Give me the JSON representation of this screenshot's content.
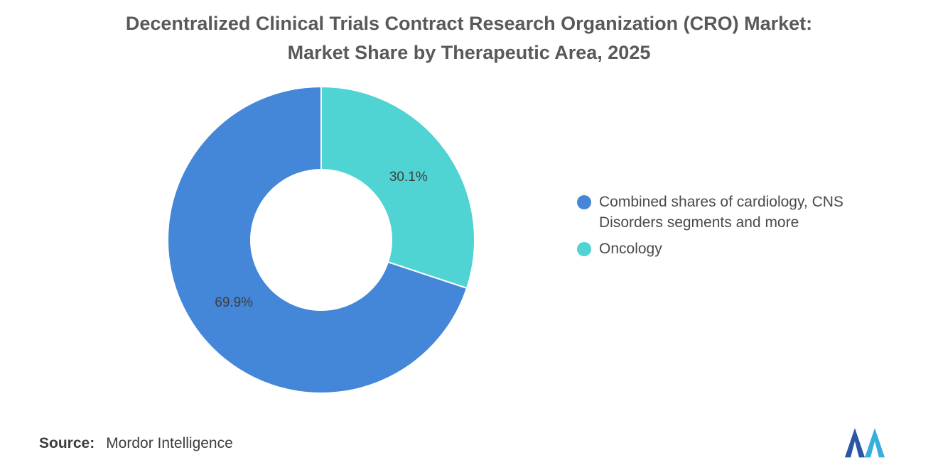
{
  "title": {
    "line1": "Decentralized Clinical Trials Contract Research Organization (CRO) Market:",
    "line2": "Market Share by Therapeutic Area, 2025"
  },
  "chart_data": {
    "type": "pie",
    "subtype": "donut",
    "title": "Decentralized Clinical Trials Contract Research Organization (CRO) Market: Market Share by Therapeutic Area, 2025",
    "slices": [
      {
        "label": "Combined shares of cardiology, CNS Disorders segments and more",
        "value": 69.9,
        "data_label": "69.9%",
        "color": "#4486D8"
      },
      {
        "label": "Oncology",
        "value": 30.1,
        "data_label": "30.1%",
        "color": "#4FD3D3"
      }
    ],
    "draw_order": [
      1,
      0
    ],
    "start_angle_deg": 0,
    "direction": "clockwise",
    "inner_radius_ratio": 0.46,
    "legend_position": "right",
    "data_label_color": "#3D3D3D"
  },
  "source": {
    "label": "Source:",
    "value": "Mordor Intelligence"
  },
  "logo": {
    "name": "mordor-intelligence-logo",
    "color_left": "#2A56A5",
    "color_right": "#36AEDE"
  }
}
